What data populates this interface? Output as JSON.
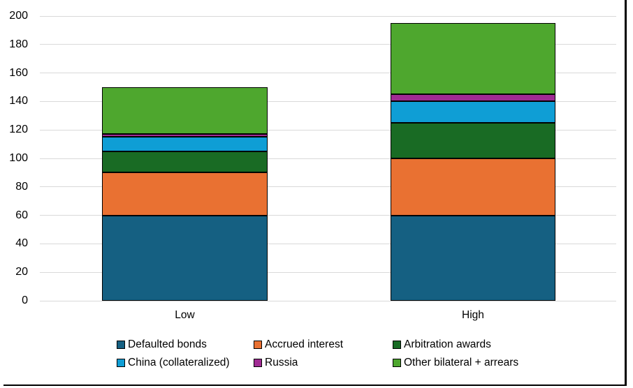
{
  "chart_data": {
    "type": "bar",
    "variant": "stacked",
    "title": "",
    "xlabel": "",
    "ylabel": "",
    "categories": [
      "Low",
      "High"
    ],
    "series": [
      {
        "name": "Defaulted bonds",
        "color": "#156082",
        "values": [
          60,
          60
        ]
      },
      {
        "name": "Accrued interest",
        "color": "#E97132",
        "values": [
          30,
          40
        ]
      },
      {
        "name": "Arbitration awards",
        "color": "#196B24",
        "values": [
          15,
          25
        ]
      },
      {
        "name": "China (collateralized)",
        "color": "#0F9ED5",
        "values": [
          10,
          15
        ]
      },
      {
        "name": "Russia",
        "color": "#A02B93",
        "values": [
          2,
          5
        ]
      },
      {
        "name": "Other bilateral + arrears",
        "color": "#4EA72E",
        "values": [
          33,
          50
        ]
      }
    ],
    "totals": [
      150,
      195
    ],
    "ylim": [
      0,
      200
    ],
    "ytick_step": 20,
    "ytick_labels": [
      "0",
      "20",
      "40",
      "60",
      "80",
      "100",
      "120",
      "140",
      "160",
      "180",
      "200"
    ],
    "grid": "horizontal",
    "gridline_color": "#d9d9d9",
    "bar_border_color": "#000000",
    "legend_position": "bottom",
    "legend_columns": 3
  }
}
